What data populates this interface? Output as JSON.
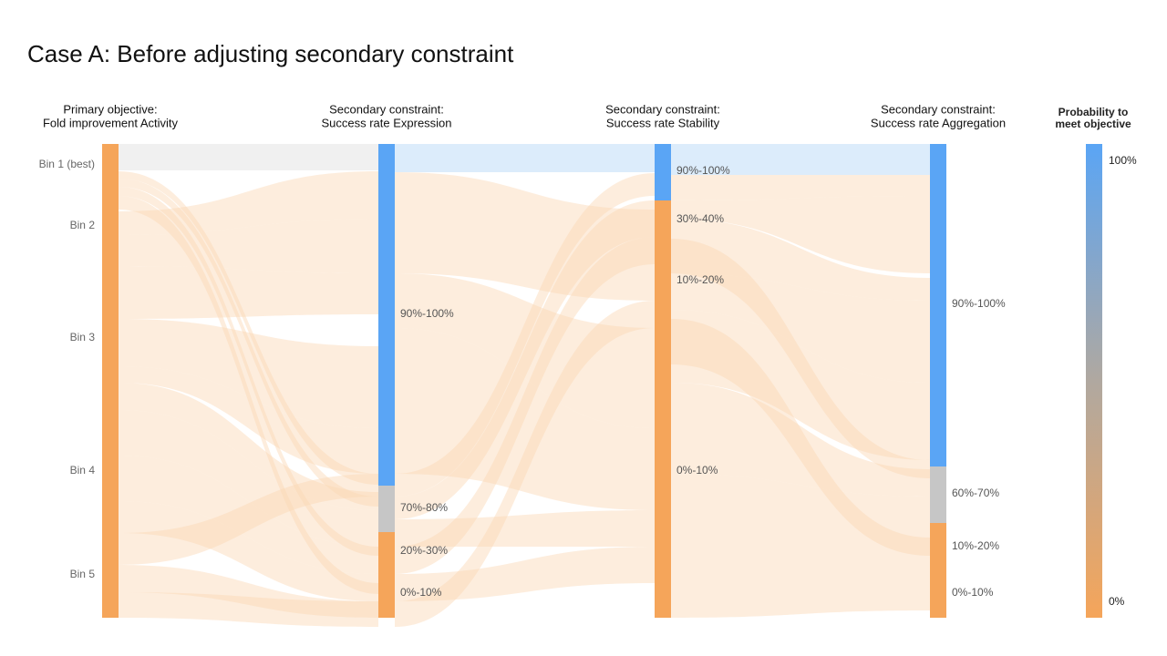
{
  "title": "Case A: Before adjusting secondary constraint",
  "columns": [
    {
      "header": [
        "Primary objective:",
        "Fold improvement Activity"
      ],
      "nodes": [
        "Bin 1 (best)",
        "Bin 2",
        "Bin 3",
        "Bin 4",
        "Bin 5"
      ]
    },
    {
      "header": [
        "Secondary constraint:",
        "Success rate Expression"
      ],
      "nodes": [
        "90%-100%",
        "70%-80%",
        "20%-30%",
        "0%-10%"
      ]
    },
    {
      "header": [
        "Secondary constraint:",
        "Success rate Stability"
      ],
      "nodes": [
        "90%-100%",
        "30%-40%",
        "10%-20%",
        "0%-10%"
      ]
    },
    {
      "header": [
        "Secondary constraint:",
        "Success rate Aggregation"
      ],
      "nodes": [
        "90%-100%",
        "60%-70%",
        "10%-20%",
        "0%-10%"
      ]
    }
  ],
  "legend": {
    "title": [
      "Probability to",
      "meet objective"
    ],
    "max": "100%",
    "min": "0%"
  }
}
